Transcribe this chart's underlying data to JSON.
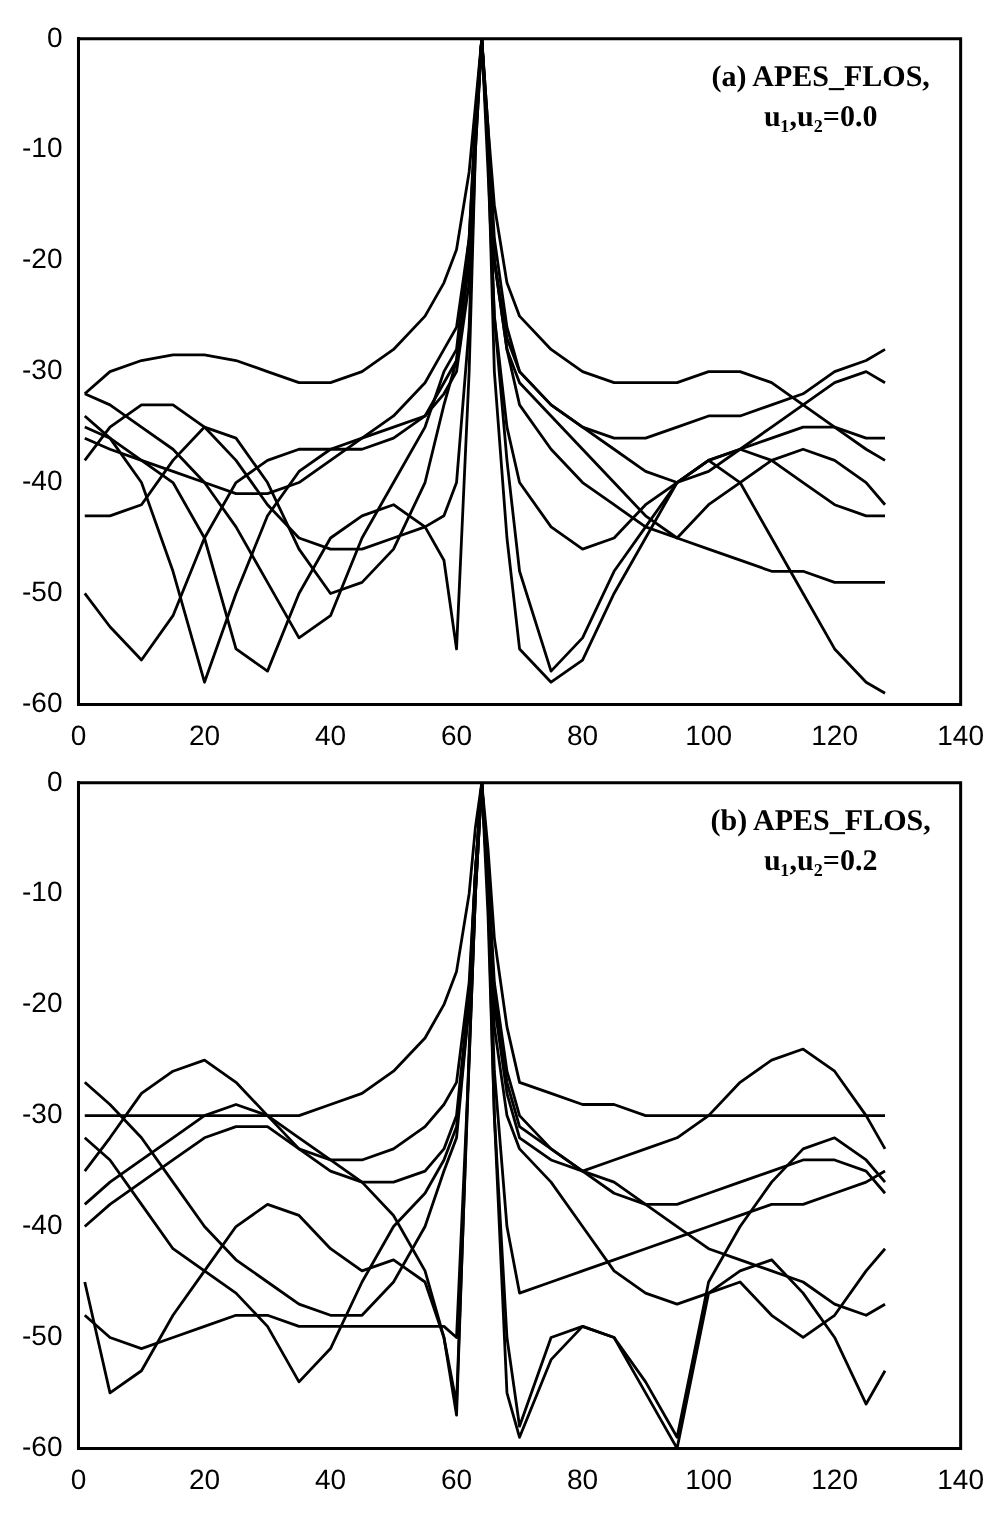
{
  "chart_data": [
    {
      "type": "line",
      "annotations": [
        "(a) APES_FLOS,",
        "u₁,u₂=0.0"
      ],
      "x": [
        1,
        5,
        10,
        15,
        20,
        25,
        30,
        35,
        40,
        45,
        50,
        55,
        58,
        60,
        62,
        63,
        64,
        65,
        66,
        68,
        70,
        75,
        80,
        85,
        90,
        95,
        100,
        105,
        110,
        115,
        120,
        125,
        128
      ],
      "xlim": [
        0,
        140
      ],
      "xticks": [
        0,
        20,
        40,
        60,
        80,
        100,
        120,
        140
      ],
      "ylim": [
        -60,
        0
      ],
      "yticks": [
        -60,
        -50,
        -40,
        -30,
        -20,
        -10,
        0
      ],
      "grid": false,
      "legend": false,
      "marker": "none",
      "line_style": "solid",
      "series": [
        {
          "color": "#000000",
          "values": [
            -32,
            -30,
            -29,
            -28.5,
            -28.5,
            -29,
            -30,
            -31,
            -31,
            -30,
            -28,
            -25,
            -22,
            -19,
            -12,
            -6,
            0,
            -8,
            -15,
            -22,
            -25,
            -28,
            -30,
            -31,
            -31,
            -31,
            -30,
            -30,
            -31,
            -33,
            -35,
            -37,
            -38
          ]
        },
        {
          "color": "#000000",
          "values": [
            -36,
            -37,
            -38,
            -39,
            -40,
            -41,
            -41,
            -40,
            -38,
            -36,
            -34,
            -31,
            -28,
            -26,
            -18,
            -8,
            0,
            -10,
            -20,
            -27,
            -30,
            -33,
            -35,
            -36,
            -36,
            -35,
            -34,
            -34,
            -33,
            -32,
            -30,
            -29,
            -28
          ]
        },
        {
          "color": "#000000",
          "values": [
            -43,
            -43,
            -42,
            -38,
            -35,
            -36,
            -40,
            -46,
            -50,
            -49,
            -46,
            -40,
            -33,
            -29,
            -20,
            -9,
            0,
            -12,
            -25,
            -38,
            -48,
            -57,
            -54,
            -48,
            -44,
            -40,
            -38,
            -40,
            -45,
            -50,
            -55,
            -58,
            -59
          ]
        },
        {
          "color": "#000000",
          "values": [
            -35,
            -36,
            -38,
            -40,
            -45,
            -55,
            -57,
            -50,
            -45,
            -43,
            -42,
            -44,
            -47,
            -55,
            -30,
            -10,
            0,
            -10,
            -30,
            -45,
            -55,
            -58,
            -56,
            -50,
            -45,
            -40,
            -38,
            -37,
            -38,
            -40,
            -42,
            -43,
            -43
          ]
        },
        {
          "color": "#000000",
          "values": [
            -50,
            -53,
            -56,
            -52,
            -45,
            -40,
            -38,
            -37,
            -37,
            -37,
            -36,
            -34,
            -31,
            -29,
            -20,
            -8,
            0,
            -9,
            -20,
            -28,
            -33,
            -37,
            -40,
            -42,
            -44,
            -45,
            -46,
            -47,
            -48,
            -48,
            -49,
            -49,
            -49
          ]
        },
        {
          "color": "#000000",
          "values": [
            -38,
            -35,
            -33,
            -33,
            -35,
            -38,
            -42,
            -45,
            -46,
            -46,
            -45,
            -44,
            -43,
            -40,
            -26,
            -10,
            0,
            -10,
            -25,
            -35,
            -40,
            -44,
            -46,
            -45,
            -42,
            -40,
            -38,
            -37,
            -36,
            -35,
            -35,
            -36,
            -36
          ]
        },
        {
          "color": "#000000",
          "values": [
            -32,
            -33,
            -35,
            -37,
            -40,
            -44,
            -49,
            -54,
            -52,
            -45,
            -40,
            -35,
            -30,
            -28,
            -18,
            -7,
            0,
            -8,
            -18,
            -26,
            -30,
            -33,
            -35,
            -37,
            -39,
            -40,
            -39,
            -37,
            -35,
            -33,
            -31,
            -30,
            -31
          ]
        },
        {
          "color": "#000000",
          "values": [
            -34,
            -36,
            -40,
            -48,
            -58,
            -50,
            -43,
            -39,
            -37,
            -36,
            -35,
            -34,
            -32,
            -30,
            -22,
            -9,
            0,
            -9,
            -20,
            -28,
            -31,
            -34,
            -37,
            -40,
            -43,
            -45,
            -42,
            -40,
            -38,
            -37,
            -38,
            -40,
            -42
          ]
        }
      ]
    },
    {
      "type": "line",
      "annotations": [
        "(b) APES_FLOS,",
        "u₁,u₂=0.2"
      ],
      "x": [
        1,
        5,
        10,
        15,
        20,
        25,
        30,
        35,
        40,
        45,
        50,
        55,
        58,
        60,
        62,
        63,
        64,
        65,
        66,
        68,
        70,
        75,
        80,
        85,
        90,
        95,
        100,
        105,
        110,
        115,
        120,
        125,
        128
      ],
      "xlim": [
        0,
        140
      ],
      "xticks": [
        0,
        20,
        40,
        60,
        80,
        100,
        120,
        140
      ],
      "ylim": [
        -60,
        0
      ],
      "yticks": [
        -60,
        -50,
        -40,
        -30,
        -20,
        -10,
        0
      ],
      "grid": false,
      "legend": false,
      "marker": "none",
      "line_style": "solid",
      "series": [
        {
          "color": "#000000",
          "values": [
            -30,
            -30,
            -30,
            -30,
            -30,
            -30,
            -30,
            -30,
            -29,
            -28,
            -26,
            -23,
            -20,
            -17,
            -10,
            -4,
            0,
            -6,
            -14,
            -22,
            -27,
            -28,
            -29,
            -29,
            -30,
            -30,
            -30,
            -30,
            -30,
            -30,
            -30,
            -30,
            -30
          ]
        },
        {
          "color": "#000000",
          "values": [
            -35,
            -32,
            -28,
            -26,
            -25,
            -27,
            -30,
            -33,
            -34,
            -34,
            -33,
            -31,
            -29,
            -27,
            -18,
            -8,
            0,
            -9,
            -20,
            -28,
            -32,
            -34,
            -35,
            -34,
            -33,
            -32,
            -30,
            -27,
            -25,
            -24,
            -26,
            -30,
            -33
          ]
        },
        {
          "color": "#000000",
          "values": [
            -45,
            -55,
            -53,
            -48,
            -44,
            -40,
            -38,
            -39,
            -42,
            -44,
            -43,
            -45,
            -50,
            -56,
            -25,
            -10,
            0,
            -10,
            -30,
            -55,
            -59,
            -52,
            -49,
            -50,
            -54,
            -59,
            -45,
            -40,
            -36,
            -33,
            -32,
            -34,
            -36
          ]
        },
        {
          "color": "#000000",
          "values": [
            -48,
            -50,
            -51,
            -50,
            -49,
            -48,
            -48,
            -49,
            -49,
            -49,
            -49,
            -49,
            -49,
            -50,
            -25,
            -10,
            0,
            -12,
            -30,
            -50,
            -58,
            -50,
            -49,
            -50,
            -55,
            -60,
            -46,
            -44,
            -43,
            -46,
            -50,
            -56,
            -53
          ]
        },
        {
          "color": "#000000",
          "values": [
            -38,
            -36,
            -34,
            -32,
            -30,
            -29,
            -30,
            -32,
            -34,
            -36,
            -39,
            -44,
            -50,
            -57,
            -24,
            -10,
            0,
            -10,
            -26,
            -40,
            -46,
            -45,
            -44,
            -43,
            -42,
            -41,
            -40,
            -39,
            -38,
            -38,
            -37,
            -36,
            -35
          ]
        },
        {
          "color": "#000000",
          "values": [
            -27,
            -29,
            -32,
            -36,
            -40,
            -43,
            -45,
            -47,
            -48,
            -48,
            -45,
            -40,
            -35,
            -32,
            -20,
            -8,
            0,
            -8,
            -18,
            -26,
            -30,
            -33,
            -35,
            -36,
            -38,
            -40,
            -42,
            -43,
            -44,
            -45,
            -47,
            -48,
            -47
          ]
        },
        {
          "color": "#000000",
          "values": [
            -40,
            -38,
            -36,
            -34,
            -32,
            -31,
            -31,
            -33,
            -35,
            -36,
            -36,
            -35,
            -33,
            -30,
            -19,
            -8,
            0,
            -9,
            -19,
            -27,
            -31,
            -33,
            -35,
            -37,
            -38,
            -38,
            -37,
            -36,
            -35,
            -34,
            -34,
            -35,
            -37
          ]
        },
        {
          "color": "#000000",
          "values": [
            -32,
            -34,
            -38,
            -42,
            -44,
            -46,
            -49,
            -54,
            -51,
            -45,
            -40,
            -37,
            -34,
            -31,
            -20,
            -8,
            0,
            -9,
            -22,
            -30,
            -33,
            -36,
            -40,
            -44,
            -46,
            -47,
            -46,
            -45,
            -48,
            -50,
            -48,
            -44,
            -42
          ]
        }
      ]
    }
  ]
}
